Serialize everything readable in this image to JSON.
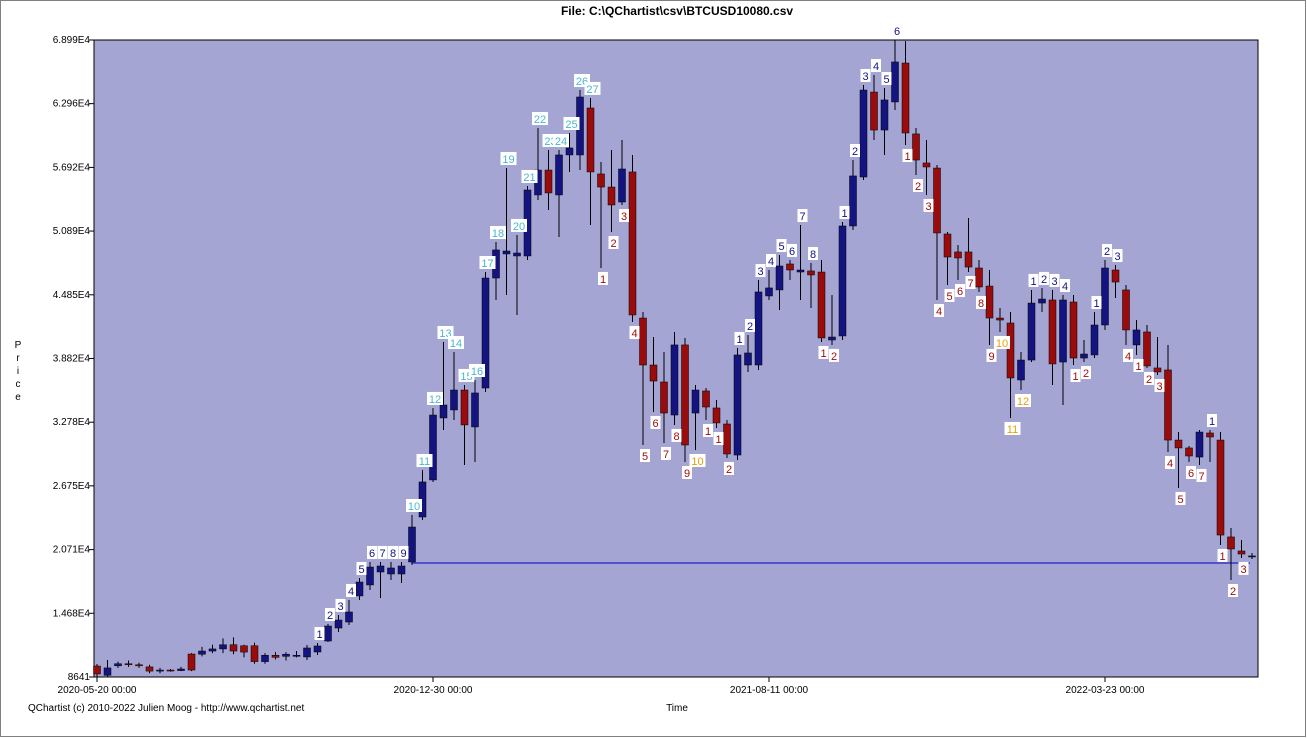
{
  "chart_data": {
    "type": "candlestick",
    "title": "File: C:\\QChartist\\csv\\BTCUSD10080.csv",
    "x_label": "Time",
    "y_label": "Price",
    "footer": "QChartist (c) 2010-2022 Julien Moog - http://www.qchartist.net",
    "background": "#a5a5d3",
    "up_color": "#141480",
    "down_color": "#9a0c0c",
    "buy_count_colors": [
      "#141480",
      "#4ab7cf"
    ],
    "sell_count_colors": [
      "#9a0c0c",
      "#e6a100"
    ],
    "ylim": [
      8641,
      68990
    ],
    "yticks": [
      8641,
      {
        "value": 14680,
        "label": "1.468E4"
      },
      {
        "value": 20710,
        "label": "2.071E4"
      },
      {
        "value": 26750,
        "label": "2.675E4"
      },
      {
        "value": 32780,
        "label": "3.278E4"
      },
      {
        "value": 38820,
        "label": "3.882E4"
      },
      {
        "value": 44850,
        "label": "4.485E4"
      },
      {
        "value": 50890,
        "label": "5.089E4"
      },
      {
        "value": 56920,
        "label": "5.692E4"
      },
      {
        "value": 62960,
        "label": "6.296E4"
      },
      {
        "value": 68990,
        "label": "6.899E4"
      }
    ],
    "level": {
      "value": 19440,
      "from_index": 30,
      "color": "#0000cc"
    },
    "categories": [
      "2020-05-20 00:00",
      null,
      null,
      null,
      null,
      null,
      null,
      null,
      null,
      null,
      null,
      null,
      null,
      null,
      null,
      null,
      null,
      null,
      null,
      null,
      null,
      null,
      null,
      null,
      null,
      null,
      null,
      null,
      null,
      null,
      null,
      null,
      "2020-12-30 00:00",
      null,
      null,
      null,
      null,
      null,
      null,
      null,
      null,
      null,
      null,
      null,
      null,
      null,
      null,
      null,
      null,
      null,
      null,
      null,
      null,
      null,
      null,
      null,
      null,
      null,
      null,
      null,
      null,
      null,
      null,
      null,
      "2021-08-11 00:00",
      null,
      null,
      null,
      null,
      null,
      null,
      null,
      null,
      null,
      null,
      null,
      null,
      null,
      null,
      null,
      null,
      null,
      null,
      null,
      null,
      null,
      null,
      null,
      null,
      null,
      null,
      null,
      null,
      null,
      null,
      null,
      "2022-03-23 00:00",
      null,
      null,
      null,
      null,
      null,
      null,
      null,
      null,
      null,
      null,
      null,
      null,
      null,
      null
    ],
    "open": [
      9680,
      8800,
      9700,
      9900,
      9800,
      9600,
      9200,
      9300,
      9250,
      10820,
      10800,
      11100,
      11300,
      11700,
      11600,
      11600,
      10100,
      10700,
      10600,
      10600,
      10540,
      11010,
      12050,
      13280,
      13850,
      16320,
      17360,
      18590,
      18400,
      18400,
      19540,
      23800,
      27310,
      33180,
      33940,
      35830,
      32330,
      36020,
      46440,
      48720,
      48530,
      48530,
      54310,
      56670,
      54310,
      58100,
      58100,
      62550,
      56300,
      55060,
      53640,
      56490,
      42650,
      38200,
      36590,
      33460,
      40100,
      33650,
      35740,
      34130,
      32610,
      29670,
      38200,
      38200,
      44740,
      45310,
      47770,
      47010,
      47110,
      47010,
      40570,
      40950,
      51370,
      56010,
      64060,
      60460,
      63120,
      66810,
      60090,
      57340,
      56860,
      50610,
      48910,
      48910,
      47390,
      45680,
      42650,
      42180,
      36780,
      38670,
      44070,
      44360,
      38480,
      44170,
      38860,
      39150,
      41990,
      47200,
      45310,
      40100,
      41330,
      37920,
      37730,
      31090,
      30340,
      29480,
      31760,
      31090,
      21910,
      20580,
      20110
    ],
    "high": [
      9870,
      10250,
      10100,
      10200,
      10000,
      9800,
      9500,
      9400,
      9600,
      10900,
      11500,
      11700,
      12300,
      12400,
      11700,
      11900,
      10900,
      11000,
      11000,
      11100,
      11670,
      11860,
      13660,
      14520,
      15940,
      18020,
      19540,
      19540,
      19540,
      19540,
      23990,
      28250,
      34130,
      40380,
      39430,
      36310,
      36780,
      47010,
      49850,
      56860,
      50520,
      55160,
      60650,
      58570,
      58570,
      60180,
      64250,
      63500,
      57430,
      58570,
      59520,
      58100,
      43220,
      40850,
      39430,
      41330,
      40760,
      36310,
      36020,
      34880,
      32990,
      39810,
      41040,
      46250,
      47200,
      48620,
      48150,
      51460,
      47860,
      48150,
      44830,
      51750,
      57620,
      64730,
      65670,
      64440,
      68990,
      68900,
      60650,
      59520,
      57150,
      50800,
      49570,
      52130,
      48150,
      47200,
      43600,
      43220,
      39430,
      45310,
      45500,
      45310,
      44830,
      44830,
      40570,
      43220,
      48150,
      47670,
      45780,
      42460,
      41990,
      40850,
      40100,
      31850,
      30530,
      32040,
      32040,
      31850,
      22760,
      21620,
      20390
    ],
    "low": [
      8641,
      8700,
      9500,
      9600,
      9500,
      9000,
      9000,
      9150,
      9200,
      9200,
      10600,
      10900,
      10900,
      10800,
      10500,
      9900,
      9900,
      10300,
      10200,
      10500,
      10250,
      10730,
      11960,
      12900,
      13570,
      15940,
      16880,
      16130,
      17830,
      17550,
      19250,
      23520,
      27120,
      32040,
      32990,
      28730,
      29010,
      35640,
      44360,
      44830,
      42940,
      48150,
      53830,
      52890,
      50330,
      56490,
      56670,
      51460,
      47390,
      50800,
      53360,
      42270,
      30620,
      33750,
      30810,
      32520,
      29010,
      30150,
      32990,
      32230,
      29390,
      29200,
      37540,
      37730,
      44360,
      43410,
      46250,
      44360,
      43600,
      40380,
      40100,
      40570,
      50990,
      55730,
      59520,
      58100,
      62360,
      59040,
      56200,
      54310,
      44360,
      45780,
      46250,
      47010,
      45120,
      40100,
      41330,
      33180,
      35830,
      38480,
      43220,
      36310,
      34410,
      38200,
      38480,
      38860,
      41520,
      44550,
      40100,
      39150,
      37920,
      37250,
      29960,
      26550,
      29010,
      28730,
      29010,
      21150,
      17830,
      19920,
      19820
    ],
    "close": [
      8930,
      9500,
      9900,
      9800,
      9700,
      9200,
      9300,
      9250,
      9400,
      9300,
      11100,
      11300,
      11700,
      11100,
      11000,
      10100,
      10700,
      10500,
      10800,
      10700,
      11390,
      11580,
      13470,
      14040,
      14800,
      17640,
      19060,
      19160,
      18970,
      19160,
      22850,
      27120,
      33460,
      34410,
      35830,
      32520,
      35550,
      46440,
      49100,
      49000,
      48810,
      54780,
      56670,
      54500,
      58100,
      58760,
      63590,
      56490,
      55060,
      53360,
      56770,
      42940,
      38200,
      36680,
      33650,
      40100,
      30620,
      35830,
      34220,
      32710,
      29770,
      39150,
      39340,
      45120,
      45500,
      47580,
      47200,
      47200,
      46730,
      40760,
      40850,
      51370,
      56110,
      64250,
      60460,
      63310,
      66910,
      60180,
      57620,
      56960,
      50710,
      48430,
      48340,
      47480,
      45590,
      42650,
      42460,
      36970,
      38670,
      44070,
      44450,
      38300,
      44360,
      38860,
      39240,
      41990,
      47390,
      46060,
      41520,
      41520,
      38110,
      37540,
      31090,
      30340,
      29580,
      31850,
      31380,
      22090,
      20770,
      20290,
      20110
    ],
    "buy_counts": [
      null,
      null,
      null,
      null,
      null,
      null,
      null,
      null,
      null,
      null,
      null,
      null,
      null,
      null,
      null,
      null,
      null,
      null,
      null,
      null,
      null,
      1,
      2,
      3,
      4,
      5,
      6,
      7,
      8,
      9,
      10,
      11,
      12,
      13,
      14,
      15,
      16,
      17,
      18,
      19,
      20,
      21,
      22,
      23,
      24,
      25,
      26,
      27,
      null,
      null,
      null,
      null,
      null,
      null,
      null,
      null,
      null,
      null,
      null,
      null,
      null,
      1,
      2,
      3,
      4,
      5,
      6,
      7,
      8,
      null,
      null,
      1,
      2,
      3,
      4,
      5,
      6,
      null,
      null,
      null,
      null,
      null,
      null,
      null,
      null,
      null,
      null,
      null,
      null,
      1,
      2,
      3,
      4,
      null,
      null,
      1,
      2,
      3,
      null,
      null,
      null,
      null,
      null,
      null,
      null,
      null,
      1,
      null,
      null,
      null,
      null
    ],
    "sell_counts": [
      null,
      null,
      null,
      null,
      null,
      null,
      null,
      null,
      null,
      null,
      null,
      null,
      null,
      null,
      null,
      null,
      null,
      null,
      null,
      null,
      null,
      null,
      null,
      null,
      null,
      null,
      null,
      null,
      null,
      null,
      null,
      null,
      null,
      null,
      null,
      null,
      null,
      null,
      null,
      null,
      null,
      null,
      null,
      null,
      null,
      null,
      null,
      null,
      1,
      2,
      3,
      4,
      5,
      6,
      7,
      8,
      9,
      10,
      1,
      1,
      2,
      null,
      null,
      null,
      null,
      null,
      null,
      null,
      null,
      1,
      2,
      null,
      null,
      null,
      null,
      null,
      null,
      1,
      2,
      3,
      4,
      5,
      6,
      7,
      8,
      9,
      10,
      11,
      12,
      null,
      null,
      null,
      null,
      1,
      2,
      null,
      null,
      null,
      4,
      1,
      2,
      3,
      4,
      5,
      6,
      7,
      null,
      1,
      2,
      3,
      null
    ]
  }
}
